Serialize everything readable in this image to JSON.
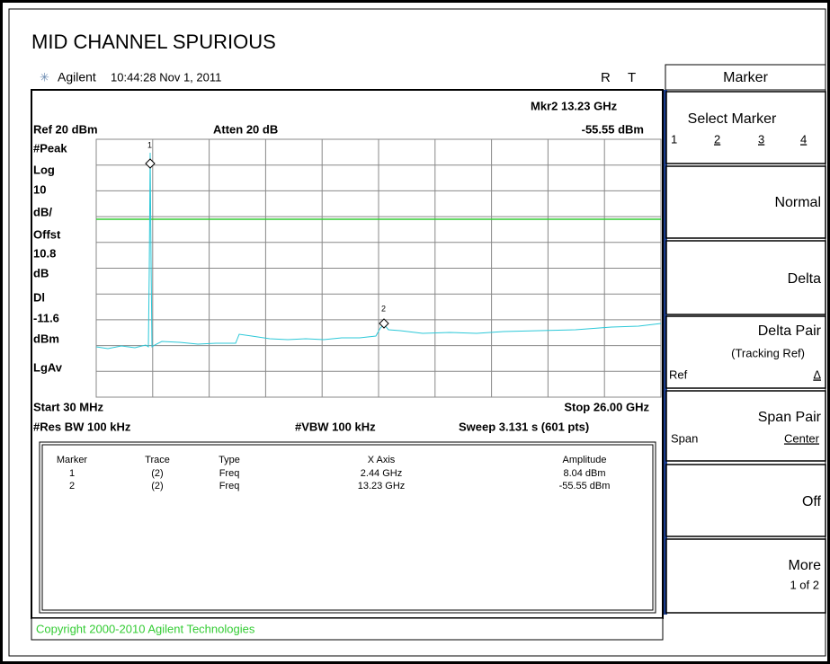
{
  "header": {
    "title": "MID CHANNEL SPURIOUS",
    "brand": "Agilent",
    "timestamp": "10:44:28  Nov 1, 2011",
    "status": [
      "R",
      "T"
    ]
  },
  "screen": {
    "ref": "Ref 20 dBm",
    "atten": "Atten 20 dB",
    "marker_readout": [
      "Mkr2  13.23 GHz",
      "-55.55 dBm"
    ],
    "left_labels": [
      "#Peak",
      "Log",
      "10",
      "dB/",
      "Offst",
      "10.8",
      "dB",
      "Dl",
      "-11.6",
      "dBm",
      "LgAv"
    ],
    "markers": [
      "1",
      "2"
    ],
    "start": "Start 30 MHz",
    "stop": "Stop 26.00 GHz",
    "res_bw": "#Res BW 100 kHz",
    "vbw": "#VBW 100 kHz",
    "sweep": "Sweep 3.131 s (601 pts)"
  },
  "table": {
    "headers": [
      "Marker",
      "Trace",
      "Type",
      "X Axis",
      "Amplitude"
    ],
    "rows": [
      [
        "1",
        "(2)",
        "Freq",
        "2.44 GHz",
        "8.04 dBm"
      ],
      [
        "2",
        "(2)",
        "Freq",
        "13.23 GHz",
        "-55.55 dBm"
      ]
    ]
  },
  "copyright": "Copyright 2000-2010 Agilent Technologies",
  "softkeys": {
    "title": "Marker",
    "select_marker": {
      "label": "Select Marker",
      "options": [
        "1",
        "2",
        "3",
        "4"
      ]
    },
    "normal": "Normal",
    "delta": "Delta",
    "delta_pair": {
      "label": "Delta Pair",
      "sub": "(Tracking Ref)",
      "left": "Ref",
      "right": "Δ"
    },
    "span_pair": {
      "label": "Span Pair",
      "left": "Span",
      "right": "Center"
    },
    "off": "Off",
    "more": {
      "label": "More",
      "sub": "1 of 2"
    }
  }
}
